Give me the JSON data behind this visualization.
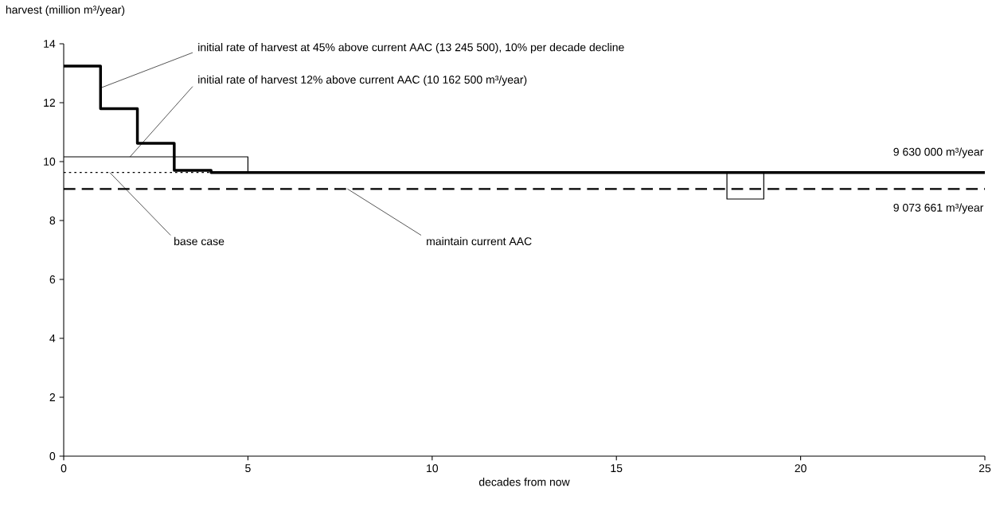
{
  "chart_data": {
    "type": "step",
    "xlabel": "decades from now",
    "ylabel": "harvest (million m³/year)",
    "xlim": [
      0,
      25
    ],
    "ylim": [
      0,
      14
    ],
    "xticks": [
      0,
      5,
      10,
      15,
      20,
      25
    ],
    "yticks": [
      0,
      2,
      4,
      6,
      8,
      10,
      12,
      14
    ],
    "grid": false,
    "series": [
      {
        "color": "#000000",
        "line_style": "solid",
        "x": [
          0,
          1,
          2,
          3,
          4,
          25
        ],
        "values": [
          13.245,
          11.8,
          10.62,
          9.7,
          9.63,
          9.63
        ]
      },
      {
        "color": "#000000",
        "line_style": "solid",
        "x": [
          0,
          5,
          18,
          19,
          25
        ],
        "values": [
          10.1625,
          9.63,
          8.73,
          9.63,
          9.63
        ]
      },
      {
        "color": "#000000",
        "line_style": "dotted",
        "x": [
          0,
          4
        ],
        "values": [
          9.63,
          9.63
        ]
      },
      {
        "color": "#000000",
        "line_style": "dashed",
        "x": [
          0,
          25
        ],
        "values": [
          9.073661,
          9.073661
        ]
      }
    ],
    "annotations": [
      {
        "text": "initial rate of harvest at 45% above current AAC (13 245 500), 10% per decade decline",
        "x": 1,
        "y": 12.5
      },
      {
        "text": "initial rate of harvest 12% above current AAC (10 162 500 m³/year)",
        "x": 1.8,
        "y": 10.1625
      },
      {
        "text": "base case",
        "x": 1.25,
        "y": 9.63
      },
      {
        "text": "maintain current AAC",
        "x": 7.7,
        "y": 9.073661
      },
      {
        "text": "9 630 000 m³/year",
        "x": 25,
        "y": 9.63
      },
      {
        "text": "9 073 661 m³/year",
        "x": 25,
        "y": 9.073661
      }
    ]
  }
}
